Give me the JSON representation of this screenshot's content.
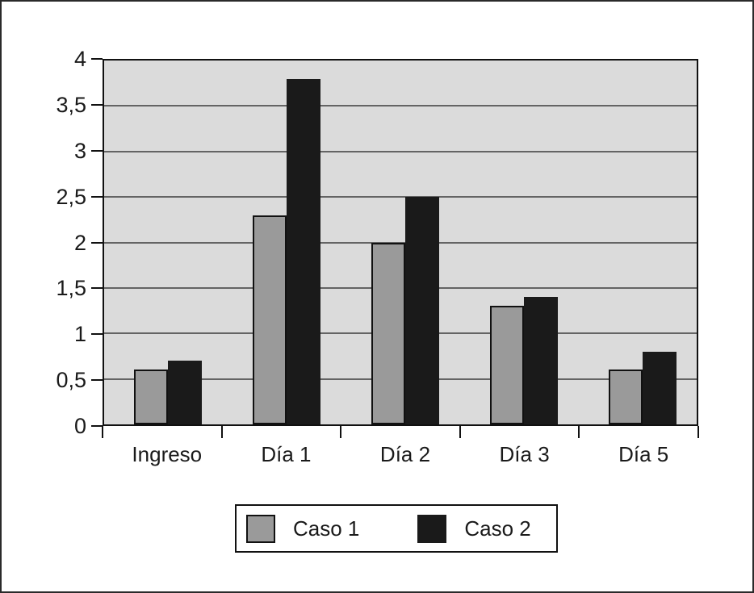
{
  "figure": {
    "background": "#ffffff",
    "frame_border_color": "#2a2a2a"
  },
  "chart_data": {
    "type": "bar",
    "title": "",
    "xlabel": "",
    "ylabel": "",
    "categories": [
      "Ingreso",
      "Día 1",
      "Día 2",
      "Día 3",
      "Día 5"
    ],
    "series": [
      {
        "name": "Caso 1",
        "color": "#9a9a9a",
        "border_color": "#111111",
        "values": [
          0.6,
          2.3,
          2.0,
          1.3,
          0.6
        ]
      },
      {
        "name": "Caso 2",
        "color": "#1a1a1a",
        "border_color": "#1a1a1a",
        "values": [
          0.7,
          3.8,
          2.5,
          1.4,
          0.8
        ]
      }
    ],
    "ylim": [
      0,
      4
    ],
    "ytick_step": 0.5,
    "yticks": [
      0,
      0.5,
      1,
      1.5,
      2,
      2.5,
      3,
      3.5,
      4
    ],
    "ytick_labels": [
      "0",
      "0,5",
      "1",
      "1,5",
      "2",
      "2,5",
      "3",
      "3,5",
      "4"
    ],
    "decimal_separator": ",",
    "grid": true,
    "gridline_color": "#646464",
    "plot_background": "#dbdbdb",
    "legend_position": "bottom"
  }
}
